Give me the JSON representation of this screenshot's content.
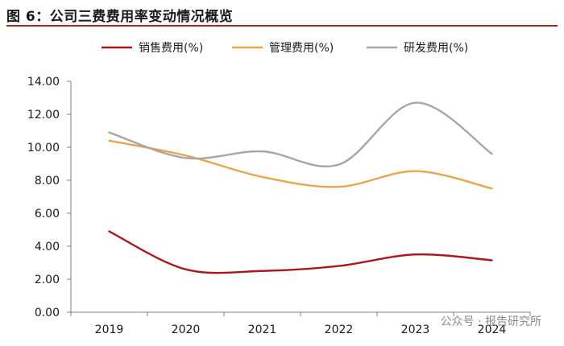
{
  "figure": {
    "title": "图 6：公司三费费用率变动情况概览",
    "watermark": "公众号 · 报告研究所"
  },
  "colors": {
    "title_rule": "#b02418",
    "axis": "#7f7f7f"
  },
  "chart_data": {
    "type": "line",
    "title": "图 6：公司三费费用率变动情况概览",
    "xlabel": "",
    "ylabel": "",
    "categories": [
      "2019",
      "2020",
      "2021",
      "2022",
      "2023",
      "2024"
    ],
    "ylim": [
      0,
      14
    ],
    "yticks": [
      0,
      2,
      4,
      6,
      8,
      10,
      12,
      14
    ],
    "ytick_labels": [
      "0.00",
      "2.00",
      "4.00",
      "6.00",
      "8.00",
      "10.00",
      "12.00",
      "14.00"
    ],
    "grid": false,
    "legend_position": "top",
    "smooth": true,
    "series": [
      {
        "name": "销售费用(%)",
        "color": "#a8191d",
        "values": [
          4.9,
          2.6,
          2.5,
          2.8,
          3.5,
          3.15
        ]
      },
      {
        "name": "管理费用(%)",
        "color": "#e8a64c",
        "values": [
          10.4,
          9.5,
          8.2,
          7.6,
          8.55,
          7.5
        ]
      },
      {
        "name": "研发费用(%)",
        "color": "#a6a6a6",
        "values": [
          10.9,
          9.35,
          9.75,
          8.95,
          12.7,
          9.6
        ]
      }
    ]
  }
}
